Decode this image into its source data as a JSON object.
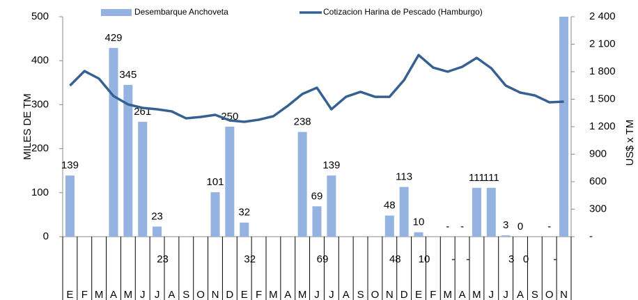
{
  "chart_data": {
    "type": "bar-line",
    "categories": [
      "E",
      "F",
      "M",
      "A",
      "M",
      "J",
      "J",
      "A",
      "S",
      "O",
      "N",
      "D",
      "E",
      "F",
      "M",
      "A",
      "M",
      "J",
      "J",
      "A",
      "S",
      "O",
      "N",
      "D",
      "E",
      "F",
      "M",
      "A",
      "M",
      "J",
      "J",
      "A",
      "S",
      "O",
      "N"
    ],
    "series": [
      {
        "name": "Desembarque Anchoveta",
        "type": "bar",
        "color": "#95b3e0",
        "values": [
          139,
          null,
          null,
          429,
          345,
          261,
          23,
          null,
          null,
          null,
          101,
          250,
          32,
          null,
          null,
          null,
          238,
          69,
          139,
          null,
          null,
          null,
          48,
          113,
          10,
          null,
          0,
          0,
          111,
          111,
          3,
          0,
          null,
          0,
          500
        ],
        "value_labels": [
          "139",
          null,
          null,
          "429",
          "345",
          "261",
          "23",
          null,
          null,
          null,
          "101",
          "250",
          "32",
          null,
          null,
          null,
          "238",
          "69",
          "139",
          null,
          null,
          null,
          "48",
          "113",
          "10",
          null,
          "-",
          "-",
          "111",
          "111",
          "3",
          "0",
          null,
          "-",
          null
        ]
      },
      {
        "name": "Cotizacion Harina de Pescado (Hamburgo)",
        "type": "line",
        "axis": "y2",
        "color": "#376092",
        "values": [
          1648,
          1807,
          1724,
          1534,
          1443,
          1405,
          1390,
          1367,
          1291,
          1306,
          1329,
          1268,
          1253,
          1276,
          1314,
          1428,
          1557,
          1625,
          1390,
          1526,
          1580,
          1526,
          1526,
          1709,
          1982,
          1845,
          1800,
          1853,
          1951,
          1838,
          1648,
          1572,
          1541,
          1466,
          1473
        ]
      }
    ],
    "ylabel": "MILES DE TM",
    "y2label": "US$ x TM",
    "ylim": [
      0,
      500
    ],
    "yticks": [
      0,
      100,
      200,
      300,
      400,
      500
    ],
    "y2lim": [
      0,
      2400
    ],
    "y2ticks": [
      {
        "value": 0,
        "label": "-"
      },
      300,
      600,
      900,
      {
        "value": 1200,
        "label": "1 200"
      },
      {
        "value": 1500,
        "label": "1 500"
      },
      {
        "value": 1800,
        "label": "1 800"
      },
      {
        "value": 2100,
        "label": "2 100"
      },
      {
        "value": 2400,
        "label": "2 400"
      }
    ],
    "legend": "top"
  }
}
